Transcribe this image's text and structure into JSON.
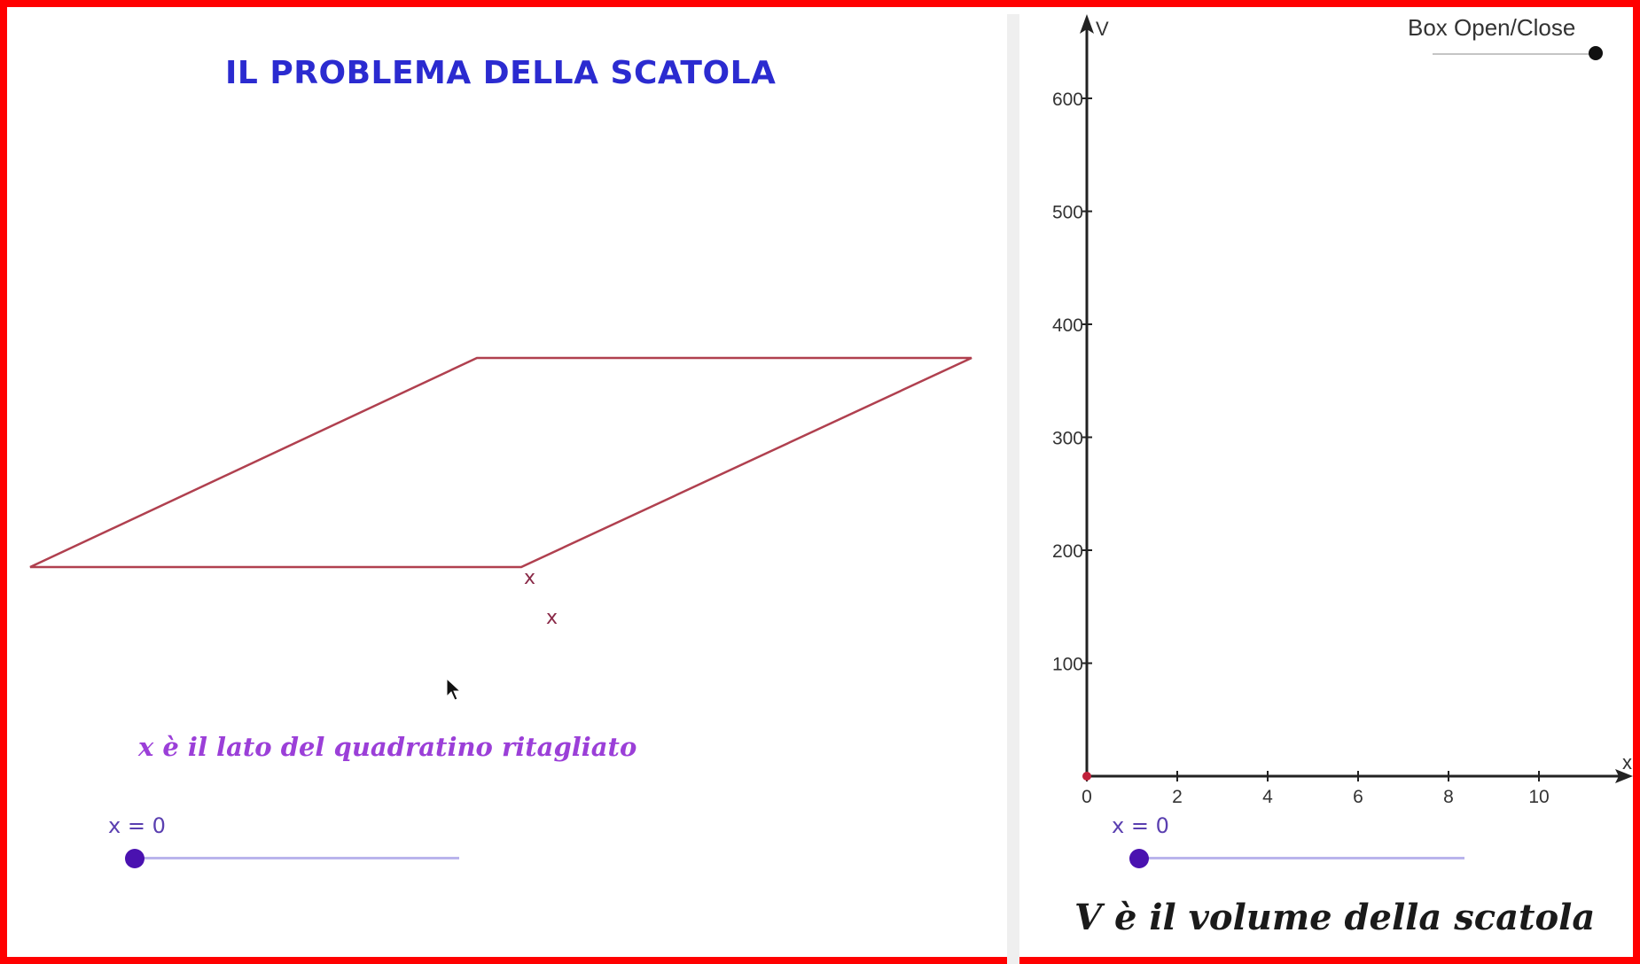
{
  "title": "IL PROBLEMA DELLA SCATOLA",
  "sheet": {
    "x_labels": [
      "x",
      "x"
    ],
    "stroke_color": "#b0404f"
  },
  "caption_left": "x è il lato del quadratino ritagliato",
  "slider_left": {
    "label": "x = 0",
    "value": 0
  },
  "slider_right": {
    "label": "x = 0",
    "value": 0
  },
  "caption_right": "V è il volume della scatola",
  "box_toggle": {
    "label": "Box Open/Close",
    "state": "closed"
  },
  "colors": {
    "frame": "#ff0000",
    "title": "#2b2bd0",
    "caption_left": "#9b3fd8",
    "slider_knob": "#4a12b0",
    "slider_track": "#b9b4ec"
  },
  "chart_data": {
    "type": "line",
    "xlabel": "x",
    "ylabel": "V",
    "xlim": [
      0,
      12
    ],
    "ylim": [
      0,
      640
    ],
    "x_ticks": [
      0,
      2,
      4,
      6,
      8,
      10
    ],
    "y_ticks": [
      100,
      200,
      300,
      400,
      500,
      600
    ],
    "x_tick_labels": [
      "0",
      "2",
      "4",
      "6",
      "8",
      "10"
    ],
    "y_tick_labels": [
      "100",
      "200",
      "300",
      "400",
      "500",
      "600"
    ],
    "grid": false,
    "points": [
      {
        "x": 0,
        "y": 0
      }
    ]
  }
}
